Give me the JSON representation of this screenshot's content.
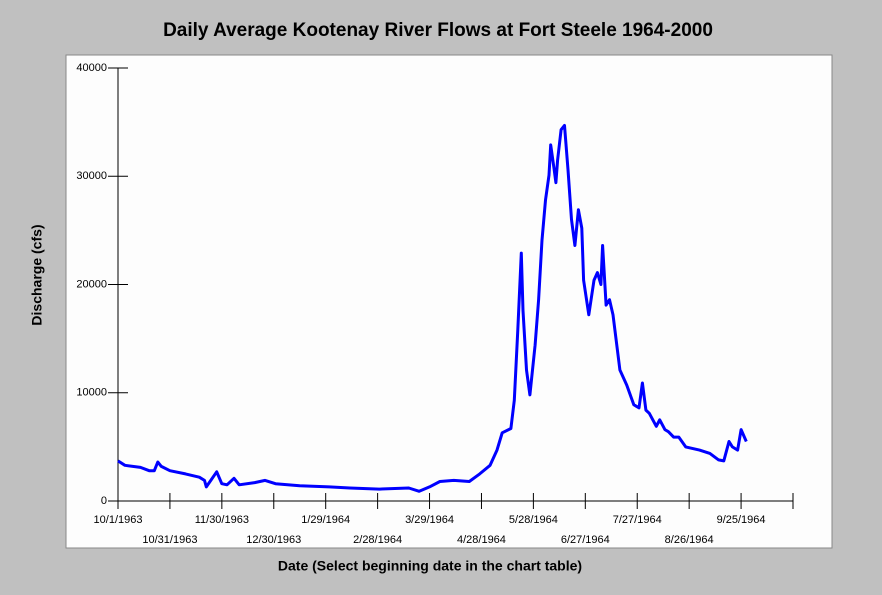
{
  "chart_data": {
    "type": "line",
    "title": "Daily Average Kootenay River Flows at Fort Steele 1964-2000",
    "x_label": "Date (Select beginning date in the chart table)",
    "y_label": "Discharge (cfs)",
    "xlim": [
      "10/1/1963",
      "10/25/1964"
    ],
    "xticks": [
      "10/1/1963",
      "10/31/1963",
      "11/30/1963",
      "12/30/1963",
      "1/29/1964",
      "2/28/1964",
      "3/29/1964",
      "4/28/1964",
      "5/28/1964",
      "6/27/1964",
      "7/27/1964",
      "8/26/1964",
      "9/25/1964"
    ],
    "ylim": [
      0,
      40000
    ],
    "yticks": [
      0,
      10000,
      20000,
      30000,
      40000
    ],
    "grid": false,
    "x": [
      "10/1/1963",
      "10/5/1963",
      "10/14/1963",
      "10/19/1963",
      "10/22/1963",
      "10/24/1963",
      "10/26/1963",
      "10/31/1963",
      "11/9/1963",
      "11/17/1963",
      "11/20/1963",
      "11/21/1963",
      "11/24/1963",
      "11/27/1963",
      "11/30/1963",
      "12/3/1963",
      "12/7/1963",
      "12/10/1963",
      "12/19/1963",
      "12/25/1963",
      "12/31/1963",
      "1/14/1964",
      "1/31/1964",
      "2/12/1964",
      "2/29/1964",
      "3/17/1964",
      "3/23/1964",
      "3/29/1964",
      "4/4/1964",
      "4/12/1964",
      "4/21/1964",
      "4/27/1964",
      "5/3/1964",
      "5/7/1964",
      "5/10/1964",
      "5/15/1964",
      "5/17/1964",
      "5/19/1964",
      "5/21/1964",
      "5/22/1964",
      "5/24/1964",
      "5/26/1964",
      "5/29/1964",
      "5/31/1964",
      "6/2/1964",
      "6/4/1964",
      "6/6/1964",
      "6/7/1964",
      "6/9/1964",
      "6/10/1964",
      "6/11/1964",
      "6/13/1964",
      "6/15/1964",
      "6/17/1964",
      "6/19/1964",
      "6/21/1964",
      "6/23/1964",
      "6/25/1964",
      "6/26/1964",
      "6/29/1964",
      "7/2/1964",
      "7/4/1964",
      "7/6/1964",
      "7/7/1964",
      "7/9/1964",
      "7/11/1964",
      "7/13/1964",
      "7/17/1964",
      "7/21/1964",
      "7/25/1964",
      "7/28/1964",
      "7/30/1964",
      "8/1/1964",
      "8/3/1964",
      "8/5/1964",
      "8/7/1964",
      "8/9/1964",
      "8/12/1964",
      "8/14/1964",
      "8/17/1964",
      "8/20/1964",
      "8/24/1964",
      "9/1/1964",
      "9/7/1964",
      "9/12/1964",
      "9/15/1964",
      "9/18/1964",
      "9/20/1964",
      "9/23/1964",
      "9/25/1964",
      "9/28/1964"
    ],
    "series": [
      {
        "name": "Discharge",
        "color": "#0000ff",
        "values": [
          3700,
          3300,
          3100,
          2800,
          2800,
          3600,
          3200,
          2800,
          2500,
          2200,
          1900,
          1300,
          2000,
          2700,
          1600,
          1500,
          2100,
          1500,
          1700,
          1900,
          1600,
          1400,
          1300,
          1200,
          1100,
          1200,
          900,
          1300,
          1800,
          1900,
          1800,
          2500,
          3300,
          4700,
          6300,
          6700,
          9300,
          15800,
          22900,
          17600,
          12100,
          9800,
          14400,
          18600,
          24100,
          27800,
          30100,
          32900,
          30600,
          29400,
          31500,
          34300,
          34700,
          30600,
          26000,
          23600,
          26900,
          25200,
          20400,
          17200,
          20400,
          21100,
          20000,
          23600,
          18100,
          18600,
          17200,
          12100,
          10700,
          8900,
          8600,
          10900,
          8400,
          8100,
          7500,
          6900,
          7500,
          6600,
          6400,
          5900,
          5900,
          5000,
          4700,
          4400,
          3800,
          3700,
          5500,
          5000,
          4700,
          6600,
          5500
        ]
      }
    ]
  }
}
